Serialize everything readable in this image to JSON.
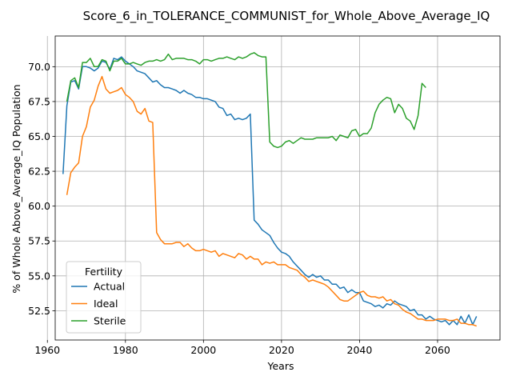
{
  "chart_data": {
    "type": "line",
    "title": "Score_6_in_TOLERANCE_COMMUNIST_for_Whole_Above_Average_IQ",
    "xlabel": "Years",
    "ylabel": "% of Whole Above_Average_IQ Population",
    "xlim": [
      1962,
      2076
    ],
    "ylim": [
      50.4,
      72.2
    ],
    "xticks": [
      1960,
      1980,
      2000,
      2020,
      2040,
      2060
    ],
    "yticks": [
      52.5,
      55.0,
      57.5,
      60.0,
      62.5,
      65.0,
      67.5,
      70.0
    ],
    "ytick_labels": [
      "52.5",
      "55.0",
      "57.5",
      "60.0",
      "62.5",
      "65.0",
      "67.5",
      "70.0"
    ],
    "grid": true,
    "legend": {
      "title": "Fertility",
      "placement": "lower-left"
    },
    "series": [
      {
        "name": "Actual",
        "color": "#1f77b4",
        "x": [
          1964,
          1965,
          1966,
          1967,
          1968,
          1969,
          1970,
          1971,
          1972,
          1973,
          1974,
          1975,
          1976,
          1977,
          1978,
          1979,
          1980,
          1981,
          1982,
          1983,
          1984,
          1985,
          1986,
          1987,
          1988,
          1989,
          1990,
          1991,
          1992,
          1993,
          1994,
          1995,
          1996,
          1997,
          1998,
          1999,
          2000,
          2001,
          2002,
          2003,
          2004,
          2005,
          2006,
          2007,
          2008,
          2009,
          2010,
          2011,
          2012,
          2013,
          2014,
          2015,
          2016,
          2017,
          2018,
          2019,
          2020,
          2021,
          2022,
          2023,
          2024,
          2025,
          2026,
          2027,
          2028,
          2029,
          2030,
          2031,
          2032,
          2033,
          2034,
          2035,
          2036,
          2037,
          2038,
          2039,
          2040,
          2041,
          2042,
          2043,
          2044,
          2045,
          2046,
          2047,
          2048,
          2049,
          2050,
          2051,
          2052,
          2053,
          2054,
          2055,
          2056,
          2057,
          2058,
          2059,
          2060,
          2061,
          2062,
          2063,
          2064,
          2065,
          2066,
          2067,
          2068,
          2069,
          2070
        ],
        "y": [
          62.3,
          67.2,
          68.9,
          69.0,
          68.4,
          70.0,
          70.0,
          69.9,
          69.7,
          69.9,
          70.4,
          70.3,
          69.8,
          70.6,
          70.5,
          70.7,
          70.4,
          70.2,
          70.0,
          69.7,
          69.6,
          69.5,
          69.2,
          68.9,
          69.0,
          68.7,
          68.5,
          68.5,
          68.4,
          68.3,
          68.1,
          68.3,
          68.1,
          68.0,
          67.8,
          67.8,
          67.7,
          67.7,
          67.6,
          67.5,
          67.1,
          67.0,
          66.5,
          66.6,
          66.2,
          66.3,
          66.2,
          66.3,
          66.6,
          59.0,
          58.7,
          58.3,
          58.1,
          57.9,
          57.4,
          57.0,
          56.7,
          56.6,
          56.4,
          56.0,
          55.7,
          55.4,
          55.1,
          54.9,
          55.1,
          54.9,
          55.0,
          54.7,
          54.7,
          54.4,
          54.4,
          54.1,
          54.2,
          53.8,
          54.0,
          53.8,
          53.8,
          53.2,
          53.1,
          53.0,
          52.8,
          52.9,
          52.7,
          53.0,
          52.9,
          53.2,
          53.0,
          52.9,
          52.8,
          52.5,
          52.6,
          52.2,
          52.2,
          51.9,
          52.1,
          51.9,
          51.8,
          51.7,
          51.8,
          51.5,
          51.8,
          51.5,
          52.1,
          51.6,
          52.2,
          51.5,
          52.1
        ]
      },
      {
        "name": "Ideal",
        "color": "#ff7f0e",
        "x": [
          1965,
          1966,
          1967,
          1968,
          1969,
          1970,
          1971,
          1972,
          1973,
          1974,
          1975,
          1976,
          1977,
          1978,
          1979,
          1980,
          1981,
          1982,
          1983,
          1984,
          1985,
          1986,
          1987,
          1988,
          1989,
          1990,
          1991,
          1992,
          1993,
          1994,
          1995,
          1996,
          1997,
          1998,
          1999,
          2000,
          2001,
          2002,
          2003,
          2004,
          2005,
          2006,
          2007,
          2008,
          2009,
          2010,
          2011,
          2012,
          2013,
          2014,
          2015,
          2016,
          2017,
          2018,
          2019,
          2020,
          2021,
          2022,
          2023,
          2024,
          2025,
          2026,
          2027,
          2028,
          2029,
          2030,
          2031,
          2032,
          2033,
          2034,
          2035,
          2036,
          2037,
          2038,
          2039,
          2040,
          2041,
          2042,
          2043,
          2044,
          2045,
          2046,
          2047,
          2048,
          2049,
          2050,
          2051,
          2052,
          2053,
          2054,
          2055,
          2056,
          2057,
          2058,
          2059,
          2060,
          2061,
          2062,
          2063,
          2064,
          2065,
          2066,
          2067,
          2068,
          2069,
          2070
        ],
        "y": [
          60.8,
          62.4,
          62.8,
          63.1,
          65.0,
          65.7,
          67.1,
          67.6,
          68.6,
          69.3,
          68.4,
          68.1,
          68.2,
          68.3,
          68.5,
          68.0,
          67.8,
          67.5,
          66.8,
          66.6,
          67.0,
          66.1,
          66.0,
          58.1,
          57.6,
          57.3,
          57.3,
          57.3,
          57.4,
          57.4,
          57.1,
          57.3,
          57.0,
          56.8,
          56.8,
          56.9,
          56.8,
          56.7,
          56.8,
          56.4,
          56.6,
          56.5,
          56.4,
          56.3,
          56.6,
          56.5,
          56.2,
          56.4,
          56.2,
          56.2,
          55.8,
          56.0,
          55.9,
          56.0,
          55.8,
          55.8,
          55.8,
          55.6,
          55.5,
          55.4,
          55.1,
          54.9,
          54.6,
          54.7,
          54.6,
          54.5,
          54.4,
          54.2,
          53.9,
          53.6,
          53.3,
          53.2,
          53.2,
          53.4,
          53.6,
          53.8,
          53.9,
          53.6,
          53.5,
          53.5,
          53.4,
          53.5,
          53.2,
          53.3,
          53.0,
          52.9,
          52.6,
          52.4,
          52.3,
          52.1,
          51.9,
          51.9,
          51.8,
          51.8,
          51.8,
          51.9,
          51.9,
          51.9,
          51.8,
          51.8,
          51.9,
          51.6,
          51.6,
          51.5,
          51.5,
          51.4
        ]
      },
      {
        "name": "Sterile",
        "color": "#2ca02c",
        "x": [
          1965,
          1966,
          1967,
          1968,
          1969,
          1970,
          1971,
          1972,
          1973,
          1974,
          1975,
          1976,
          1977,
          1978,
          1979,
          1980,
          1981,
          1982,
          1983,
          1984,
          1985,
          1986,
          1987,
          1988,
          1989,
          1990,
          1991,
          1992,
          1993,
          1994,
          1995,
          1996,
          1997,
          1998,
          1999,
          2000,
          2001,
          2002,
          2003,
          2004,
          2005,
          2006,
          2007,
          2008,
          2009,
          2010,
          2011,
          2012,
          2013,
          2014,
          2015,
          2016,
          2017,
          2018,
          2019,
          2020,
          2021,
          2022,
          2023,
          2024,
          2025,
          2026,
          2027,
          2028,
          2029,
          2030,
          2031,
          2032,
          2033,
          2034,
          2035,
          2036,
          2037,
          2038,
          2039,
          2040,
          2041,
          2042,
          2043,
          2044,
          2045,
          2046,
          2047,
          2048,
          2049,
          2050,
          2051,
          2052,
          2053,
          2054,
          2055,
          2056,
          2057
        ],
        "y": [
          67.5,
          69.0,
          69.2,
          68.5,
          70.3,
          70.3,
          70.6,
          70.0,
          70.0,
          70.5,
          70.4,
          69.7,
          70.4,
          70.4,
          70.6,
          70.2,
          70.2,
          70.3,
          70.2,
          70.1,
          70.3,
          70.4,
          70.4,
          70.5,
          70.4,
          70.5,
          70.9,
          70.5,
          70.6,
          70.6,
          70.6,
          70.5,
          70.5,
          70.4,
          70.2,
          70.5,
          70.5,
          70.4,
          70.5,
          70.6,
          70.6,
          70.7,
          70.6,
          70.5,
          70.7,
          70.6,
          70.7,
          70.9,
          71.0,
          70.8,
          70.7,
          70.7,
          64.6,
          64.3,
          64.2,
          64.3,
          64.6,
          64.7,
          64.5,
          64.7,
          64.9,
          64.8,
          64.8,
          64.8,
          64.9,
          64.9,
          64.9,
          64.9,
          65.0,
          64.7,
          65.1,
          65.0,
          64.9,
          65.4,
          65.5,
          65.0,
          65.2,
          65.2,
          65.6,
          66.7,
          67.3,
          67.6,
          67.8,
          67.7,
          66.7,
          67.3,
          67.0,
          66.3,
          66.1,
          65.5,
          66.5,
          68.8,
          68.5
        ]
      }
    ]
  }
}
